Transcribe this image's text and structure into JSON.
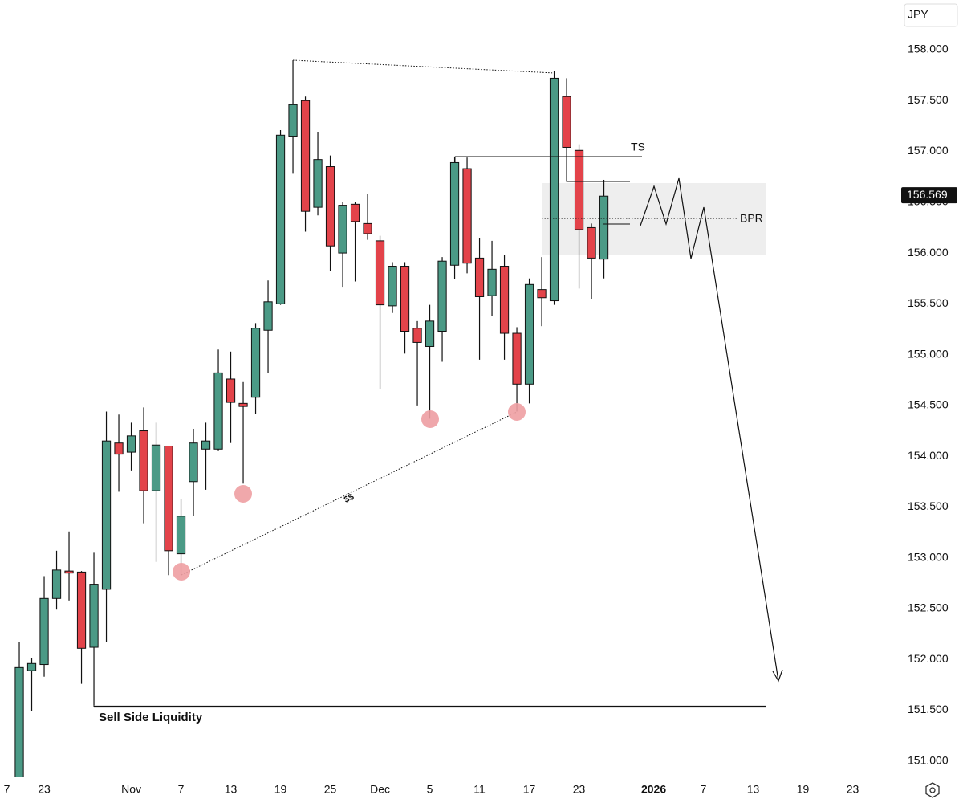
{
  "chart_data": {
    "type": "candlestick",
    "currency": "JPY",
    "x": [
      0,
      1,
      2,
      3,
      4,
      5,
      6,
      7,
      8,
      9,
      10,
      11,
      12,
      13,
      14,
      15,
      16,
      17,
      18,
      19,
      20,
      21,
      22,
      23,
      24,
      25,
      26,
      27,
      28,
      29,
      30,
      31,
      32,
      33,
      34,
      35,
      36,
      37,
      38,
      39,
      40,
      41,
      42,
      43,
      44,
      45,
      46,
      47
    ],
    "open": [
      150.7,
      151.89,
      151.95,
      152.6,
      152.87,
      152.86,
      152.12,
      152.69,
      154.13,
      154.04,
      154.25,
      153.66,
      154.1,
      153.04,
      153.75,
      154.07,
      154.07,
      154.76,
      154.52,
      154.58,
      155.24,
      155.5,
      157.15,
      157.5,
      156.45,
      156.85,
      156.0,
      156.48,
      156.29,
      156.12,
      155.48,
      155.87,
      155.26,
      155.08,
      155.23,
      155.88,
      156.83,
      155.95,
      155.58,
      155.87,
      155.21,
      154.71,
      155.64,
      155.53,
      157.54,
      157.01,
      156.25,
      155.94
    ],
    "high": [
      152.17,
      152.01,
      152.82,
      153.07,
      153.26,
      152.87,
      153.05,
      154.44,
      154.41,
      154.33,
      154.48,
      154.33,
      154.1,
      153.58,
      154.27,
      154.33,
      155.05,
      155.03,
      154.73,
      155.31,
      155.73,
      157.21,
      157.89,
      157.54,
      157.19,
      156.96,
      156.5,
      156.5,
      156.58,
      156.17,
      155.91,
      155.91,
      155.33,
      155.49,
      155.96,
      156.95,
      156.94,
      156.15,
      156.12,
      155.98,
      155.27,
      155.75,
      155.96,
      157.79,
      157.72,
      157.07,
      156.29,
      156.72
    ],
    "low": [
      150.6,
      151.49,
      151.83,
      152.49,
      152.58,
      151.76,
      151.55,
      152.17,
      153.65,
      153.86,
      153.34,
      152.96,
      152.83,
      152.83,
      153.41,
      153.67,
      154.05,
      154.13,
      153.73,
      154.42,
      154.82,
      155.49,
      156.78,
      156.21,
      156.37,
      155.82,
      155.66,
      155.72,
      156.13,
      154.66,
      155.41,
      155.01,
      154.5,
      154.37,
      154.93,
      155.74,
      155.8,
      154.95,
      155.38,
      154.95,
      154.44,
      154.52,
      155.28,
      155.49,
      156.7,
      155.65,
      155.55,
      155.75
    ],
    "close": [
      151.92,
      151.96,
      152.6,
      152.88,
      152.85,
      152.11,
      152.74,
      154.15,
      154.02,
      154.2,
      153.66,
      154.11,
      153.07,
      153.41,
      154.13,
      154.15,
      154.82,
      154.53,
      154.49,
      155.26,
      155.52,
      157.16,
      157.46,
      156.41,
      156.92,
      156.07,
      156.47,
      156.31,
      156.19,
      155.49,
      155.87,
      155.23,
      155.12,
      155.33,
      155.92,
      156.89,
      155.9,
      155.57,
      155.84,
      155.21,
      154.71,
      155.69,
      155.56,
      157.72,
      157.04,
      156.23,
      155.95,
      156.56
    ],
    "up_color": "#4b9a86",
    "down_color": "#e3434a",
    "xlim": [
      -1.55,
      70.06
    ],
    "xticks": [
      {
        "value": -1,
        "label": "7"
      },
      {
        "value": 2,
        "label": "23"
      },
      {
        "value": 9,
        "label": "Nov"
      },
      {
        "value": 13,
        "label": "7"
      },
      {
        "value": 17,
        "label": "13"
      },
      {
        "value": 21,
        "label": "19"
      },
      {
        "value": 25,
        "label": "25"
      },
      {
        "value": 29,
        "label": "Dec"
      },
      {
        "value": 33,
        "label": "5"
      },
      {
        "value": 37,
        "label": "11"
      },
      {
        "value": 41,
        "label": "17"
      },
      {
        "value": 45,
        "label": "23"
      },
      {
        "value": 51,
        "label": "2026"
      },
      {
        "value": 55,
        "label": "7"
      },
      {
        "value": 59,
        "label": "13"
      },
      {
        "value": 63,
        "label": "19"
      },
      {
        "value": 67,
        "label": "23"
      }
    ],
    "ylim": [
      150.84,
      158.49
    ],
    "yticks": [
      {
        "value": 151,
        "label": "151.000"
      },
      {
        "value": 151.5,
        "label": "151.500"
      },
      {
        "value": 152,
        "label": "152.000"
      },
      {
        "value": 152.5,
        "label": "152.500"
      },
      {
        "value": 153,
        "label": "153.000"
      },
      {
        "value": 153.5,
        "label": "153.500"
      },
      {
        "value": 154,
        "label": "154.000"
      },
      {
        "value": 154.5,
        "label": "154.500"
      },
      {
        "value": 155,
        "label": "155.000"
      },
      {
        "value": 155.5,
        "label": "155.500"
      },
      {
        "value": 156,
        "label": "156.000"
      },
      {
        "value": 156.5,
        "label": "156.500"
      },
      {
        "value": 157,
        "label": "157.000"
      },
      {
        "value": 157.5,
        "label": "157.500"
      },
      {
        "value": 158,
        "label": "158.000"
      }
    ],
    "last_price": {
      "value": 156.569,
      "label": "156.569"
    },
    "annotations": {
      "ts": "TS",
      "bpr": "BPR",
      "sell_side": "Sell Side Liquidity",
      "liquidity": "$$"
    }
  }
}
